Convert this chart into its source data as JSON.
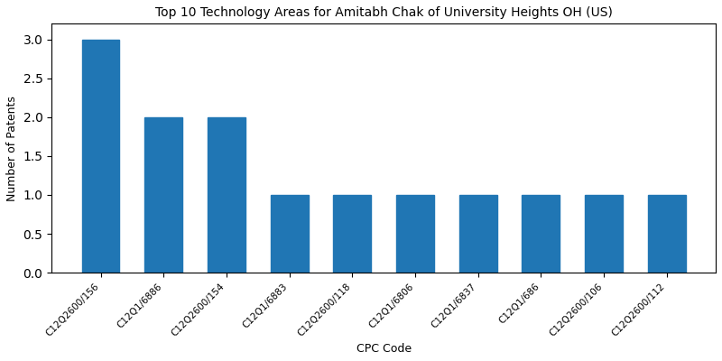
{
  "title": "Top 10 Technology Areas for Amitabh Chak of University Heights OH (US)",
  "xlabel": "CPC Code",
  "ylabel": "Number of Patents",
  "categories": [
    "C12Q2600/156",
    "C12Q1/6886",
    "C12Q2600/154",
    "C12Q1/6883",
    "C12Q2600/118",
    "C12Q1/6806",
    "C12Q1/6837",
    "C12Q1/686",
    "C12Q2600/106",
    "C12Q2600/112"
  ],
  "values": [
    3,
    2,
    2,
    1,
    1,
    1,
    1,
    1,
    1,
    1
  ],
  "bar_color": "#2076b4",
  "ylim": [
    0,
    3.2
  ],
  "yticks": [
    0.0,
    0.5,
    1.0,
    1.5,
    2.0,
    2.5,
    3.0
  ],
  "figsize": [
    8,
    4
  ],
  "dpi": 100,
  "title_fontsize": 10,
  "label_fontsize": 9,
  "tick_fontsize": 7.5
}
